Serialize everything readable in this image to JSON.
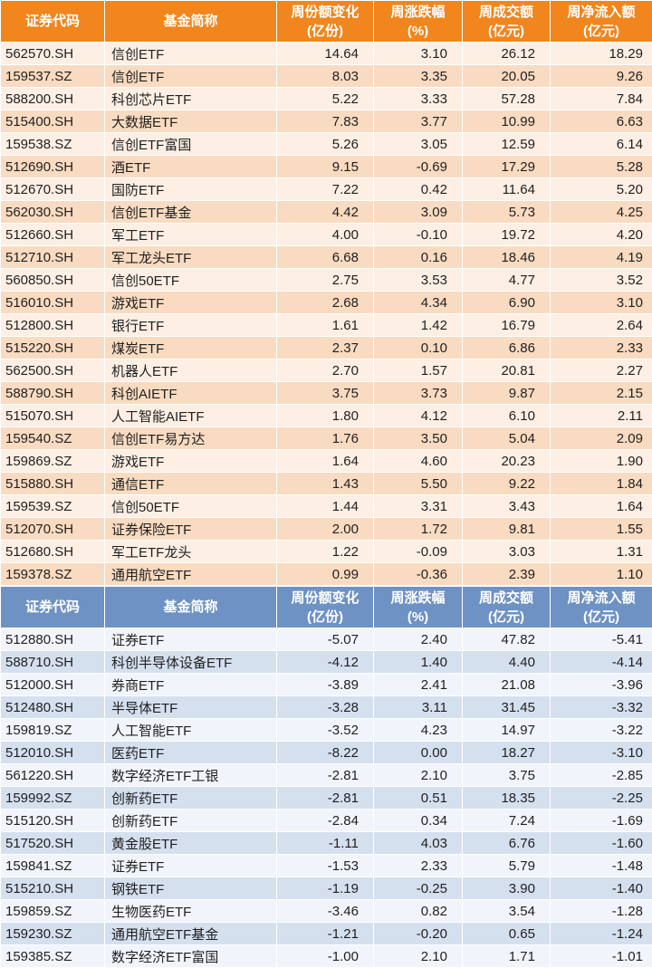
{
  "colors": {
    "orange_header": "#f0861d",
    "orange_row_light": "#fdefe4",
    "orange_row_dark": "#f9dbc1",
    "blue_header": "#6e92c3",
    "blue_row_light": "#f1f5fb",
    "blue_row_dark": "#d5e0ef"
  },
  "chart_data": [
    {
      "type": "table",
      "theme": "orange",
      "columns": [
        {
          "title": "证券代码",
          "unit": ""
        },
        {
          "title": "基金简称",
          "unit": ""
        },
        {
          "title": "周份额变化",
          "unit": "(亿份)"
        },
        {
          "title": "周涨跌幅",
          "unit": "(%)"
        },
        {
          "title": "周成交额",
          "unit": "(亿元)"
        },
        {
          "title": "周净流入额",
          "unit": "(亿元)"
        }
      ],
      "rows": [
        [
          "562570.SH",
          "信创ETF",
          "14.64",
          "3.10",
          "26.12",
          "18.29"
        ],
        [
          "159537.SZ",
          "信创ETF",
          "8.03",
          "3.35",
          "20.05",
          "9.26"
        ],
        [
          "588200.SH",
          "科创芯片ETF",
          "5.22",
          "3.33",
          "57.28",
          "7.84"
        ],
        [
          "515400.SH",
          "大数据ETF",
          "7.83",
          "3.77",
          "10.99",
          "6.63"
        ],
        [
          "159538.SZ",
          "信创ETF富国",
          "5.26",
          "3.05",
          "12.59",
          "6.14"
        ],
        [
          "512690.SH",
          "酒ETF",
          "9.15",
          "-0.69",
          "17.29",
          "5.28"
        ],
        [
          "512670.SH",
          "国防ETF",
          "7.22",
          "0.42",
          "11.64",
          "5.20"
        ],
        [
          "562030.SH",
          "信创ETF基金",
          "4.42",
          "3.09",
          "5.73",
          "4.25"
        ],
        [
          "512660.SH",
          "军工ETF",
          "4.00",
          "-0.10",
          "19.72",
          "4.20"
        ],
        [
          "512710.SH",
          "军工龙头ETF",
          "6.68",
          "0.16",
          "18.46",
          "4.19"
        ],
        [
          "560850.SH",
          "信创50ETF",
          "2.75",
          "3.53",
          "4.77",
          "3.52"
        ],
        [
          "516010.SH",
          "游戏ETF",
          "2.68",
          "4.34",
          "6.90",
          "3.10"
        ],
        [
          "512800.SH",
          "银行ETF",
          "1.61",
          "1.42",
          "16.79",
          "2.64"
        ],
        [
          "515220.SH",
          "煤炭ETF",
          "2.37",
          "0.10",
          "6.86",
          "2.33"
        ],
        [
          "562500.SH",
          "机器人ETF",
          "2.70",
          "1.57",
          "20.81",
          "2.27"
        ],
        [
          "588790.SH",
          "科创AIETF",
          "3.75",
          "3.73",
          "9.87",
          "2.15"
        ],
        [
          "515070.SH",
          "人工智能AIETF",
          "1.80",
          "4.12",
          "6.10",
          "2.11"
        ],
        [
          "159540.SZ",
          "信创ETF易方达",
          "1.76",
          "3.50",
          "5.04",
          "2.09"
        ],
        [
          "159869.SZ",
          "游戏ETF",
          "1.64",
          "4.60",
          "20.23",
          "1.90"
        ],
        [
          "515880.SH",
          "通信ETF",
          "1.43",
          "5.50",
          "9.22",
          "1.84"
        ],
        [
          "159539.SZ",
          "信创50ETF",
          "1.44",
          "3.31",
          "3.43",
          "1.64"
        ],
        [
          "512070.SH",
          "证券保险ETF",
          "2.00",
          "1.72",
          "9.81",
          "1.55"
        ],
        [
          "512680.SH",
          "军工ETF龙头",
          "1.22",
          "-0.09",
          "3.03",
          "1.31"
        ],
        [
          "159378.SZ",
          "通用航空ETF",
          "0.99",
          "-0.36",
          "2.39",
          "1.10"
        ]
      ]
    },
    {
      "type": "table",
      "theme": "blue",
      "columns": [
        {
          "title": "证券代码",
          "unit": ""
        },
        {
          "title": "基金简称",
          "unit": ""
        },
        {
          "title": "周份额变化",
          "unit": "(亿份)"
        },
        {
          "title": "周涨跌幅",
          "unit": "(%)"
        },
        {
          "title": "周成交额",
          "unit": "(亿元)"
        },
        {
          "title": "周净流入额",
          "unit": "(亿元)"
        }
      ],
      "rows": [
        [
          "512880.SH",
          "证券ETF",
          "-5.07",
          "2.40",
          "47.82",
          "-5.41"
        ],
        [
          "588710.SH",
          "科创半导体设备ETF",
          "-4.12",
          "1.40",
          "4.40",
          "-4.14"
        ],
        [
          "512000.SH",
          "券商ETF",
          "-3.89",
          "2.41",
          "21.08",
          "-3.96"
        ],
        [
          "512480.SH",
          "半导体ETF",
          "-3.28",
          "3.11",
          "31.45",
          "-3.32"
        ],
        [
          "159819.SZ",
          "人工智能ETF",
          "-3.52",
          "4.23",
          "14.97",
          "-3.22"
        ],
        [
          "512010.SH",
          "医药ETF",
          "-8.22",
          "0.00",
          "18.27",
          "-3.10"
        ],
        [
          "561220.SH",
          "数字经济ETF工银",
          "-2.81",
          "2.10",
          "3.75",
          "-2.85"
        ],
        [
          "159992.SZ",
          "创新药ETF",
          "-2.81",
          "0.51",
          "18.35",
          "-2.25"
        ],
        [
          "515120.SH",
          "创新药ETF",
          "-2.84",
          "0.34",
          "7.24",
          "-1.69"
        ],
        [
          "517520.SH",
          "黄金股ETF",
          "-1.11",
          "4.03",
          "6.76",
          "-1.60"
        ],
        [
          "159841.SZ",
          "证券ETF",
          "-1.53",
          "2.33",
          "5.79",
          "-1.48"
        ],
        [
          "515210.SH",
          "钢铁ETF",
          "-1.19",
          "-0.25",
          "3.90",
          "-1.40"
        ],
        [
          "159859.SZ",
          "生物医药ETF",
          "-3.46",
          "0.82",
          "3.54",
          "-1.28"
        ],
        [
          "159230.SZ",
          "通用航空ETF基金",
          "-1.21",
          "-0.20",
          "0.65",
          "-1.24"
        ],
        [
          "159385.SZ",
          "数字经济ETF富国",
          "-1.00",
          "2.10",
          "1.71",
          "-1.01"
        ]
      ]
    }
  ]
}
